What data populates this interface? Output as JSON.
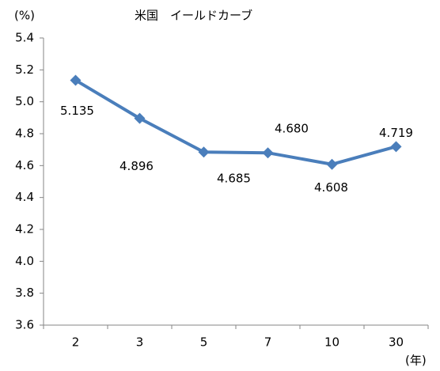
{
  "chart_data": {
    "type": "line",
    "title": "米国　イールドカーブ",
    "y_unit": "(%)",
    "x_unit": "(年)",
    "categories": [
      "2",
      "3",
      "5",
      "7",
      "10",
      "30"
    ],
    "values": [
      5.135,
      4.896,
      4.685,
      4.68,
      4.608,
      4.719
    ],
    "value_labels": [
      "5.135",
      "4.896",
      "4.685",
      "4.680",
      "4.608",
      "4.719"
    ],
    "color": "#4a7ebb",
    "ylim": [
      3.6,
      5.4
    ],
    "yticks": [
      {
        "value": 3.6,
        "label": "3.6"
      },
      {
        "value": 3.8,
        "label": "3.8"
      },
      {
        "value": 4,
        "label": "4.0"
      },
      4.2,
      4.4,
      4.6,
      4.8,
      {
        "value": 5,
        "label": "5.0"
      },
      5.2,
      5.4
    ]
  }
}
